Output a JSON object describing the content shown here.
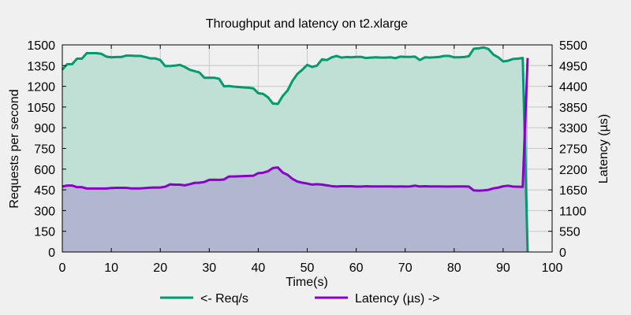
{
  "chart_data": {
    "type": "area",
    "title": "Throughput and latency on t2.xlarge",
    "xlabel": "Time(s)",
    "ylabel_left": "Requests per second",
    "ylabel_right": "Latency (µs)",
    "xlim": [
      0,
      100
    ],
    "ylim_left": [
      0,
      1500
    ],
    "ylim_right": [
      0,
      5500
    ],
    "xticks": [
      0,
      10,
      20,
      30,
      40,
      50,
      60,
      70,
      80,
      90,
      100
    ],
    "yticks_left": [
      0,
      150,
      300,
      450,
      600,
      750,
      900,
      1050,
      1200,
      1350,
      1500
    ],
    "yticks_right": [
      0,
      550,
      1100,
      1650,
      2200,
      2750,
      3300,
      3850,
      4400,
      4950,
      5500
    ],
    "grid": true,
    "legend_position": "bottom",
    "series": [
      {
        "name": "<- Req/s",
        "axis": "left",
        "color": "#009a6e",
        "fill": "#c0e0d6",
        "x": [
          0,
          1,
          2,
          3,
          4,
          5,
          6,
          7,
          8,
          9,
          10,
          11,
          12,
          13,
          14,
          15,
          16,
          17,
          18,
          19,
          20,
          21,
          22,
          23,
          24,
          25,
          26,
          27,
          28,
          29,
          30,
          31,
          32,
          33,
          34,
          35,
          36,
          37,
          38,
          39,
          40,
          41,
          42,
          43,
          44,
          45,
          46,
          47,
          48,
          49,
          50,
          51,
          52,
          53,
          54,
          55,
          56,
          57,
          58,
          59,
          60,
          61,
          62,
          63,
          64,
          65,
          66,
          67,
          68,
          69,
          70,
          71,
          72,
          73,
          74,
          75,
          76,
          77,
          78,
          79,
          80,
          81,
          82,
          83,
          84,
          85,
          86,
          87,
          88,
          89,
          90,
          91,
          92,
          93,
          94,
          95
        ],
        "values": [
          1320,
          1360,
          1360,
          1400,
          1400,
          1440,
          1440,
          1440,
          1435,
          1415,
          1410,
          1412,
          1412,
          1422,
          1422,
          1420,
          1420,
          1412,
          1402,
          1402,
          1390,
          1347,
          1347,
          1350,
          1355,
          1340,
          1320,
          1310,
          1300,
          1262,
          1262,
          1262,
          1255,
          1200,
          1202,
          1198,
          1195,
          1192,
          1190,
          1185,
          1150,
          1145,
          1120,
          1075,
          1072,
          1130,
          1170,
          1240,
          1290,
          1320,
          1355,
          1340,
          1350,
          1395,
          1390,
          1410,
          1420,
          1408,
          1412,
          1410,
          1413,
          1413,
          1405,
          1408,
          1410,
          1408,
          1408,
          1410,
          1404,
          1415,
          1413,
          1413,
          1415,
          1390,
          1410,
          1408,
          1410,
          1413,
          1420,
          1420,
          1410,
          1410,
          1412,
          1418,
          1472,
          1475,
          1482,
          1470,
          1430,
          1410,
          1380,
          1385,
          1398,
          1400,
          1405,
          0
        ]
      },
      {
        "name": "Latency (µs) ->",
        "axis": "right",
        "color": "#8a00c8",
        "fill": "#b0b4d0",
        "x": [
          0,
          1,
          2,
          3,
          4,
          5,
          6,
          7,
          8,
          9,
          10,
          11,
          12,
          13,
          14,
          15,
          16,
          17,
          18,
          19,
          20,
          21,
          22,
          23,
          24,
          25,
          26,
          27,
          28,
          29,
          30,
          31,
          32,
          33,
          34,
          35,
          36,
          37,
          38,
          39,
          40,
          41,
          42,
          43,
          44,
          45,
          46,
          47,
          48,
          49,
          50,
          51,
          52,
          53,
          54,
          55,
          56,
          57,
          58,
          59,
          60,
          61,
          62,
          63,
          64,
          65,
          66,
          67,
          68,
          69,
          70,
          71,
          72,
          73,
          74,
          75,
          76,
          77,
          78,
          79,
          80,
          81,
          82,
          83,
          84,
          85,
          86,
          87,
          88,
          89,
          90,
          91,
          92,
          93,
          94,
          95
        ],
        "values": [
          1740,
          1765,
          1765,
          1722,
          1722,
          1686,
          1686,
          1686,
          1686,
          1686,
          1700,
          1704,
          1704,
          1704,
          1690,
          1690,
          1690,
          1700,
          1710,
          1713,
          1713,
          1734,
          1795,
          1788,
          1788,
          1770,
          1800,
          1835,
          1840,
          1860,
          1915,
          1920,
          1915,
          1925,
          2005,
          2005,
          2010,
          2015,
          2020,
          2025,
          2095,
          2105,
          2145,
          2230,
          2245,
          2110,
          2050,
          1940,
          1870,
          1840,
          1818,
          1790,
          1800,
          1790,
          1770,
          1750,
          1738,
          1745,
          1745,
          1745,
          1738,
          1738,
          1745,
          1741,
          1741,
          1740,
          1741,
          1741,
          1738,
          1741,
          1738,
          1741,
          1762,
          1740,
          1745,
          1741,
          1741,
          1741,
          1738,
          1738,
          1740,
          1740,
          1741,
          1738,
          1636,
          1628,
          1636,
          1650,
          1690,
          1710,
          1745,
          1760,
          1738,
          1733,
          1730,
          5150
        ]
      }
    ]
  }
}
